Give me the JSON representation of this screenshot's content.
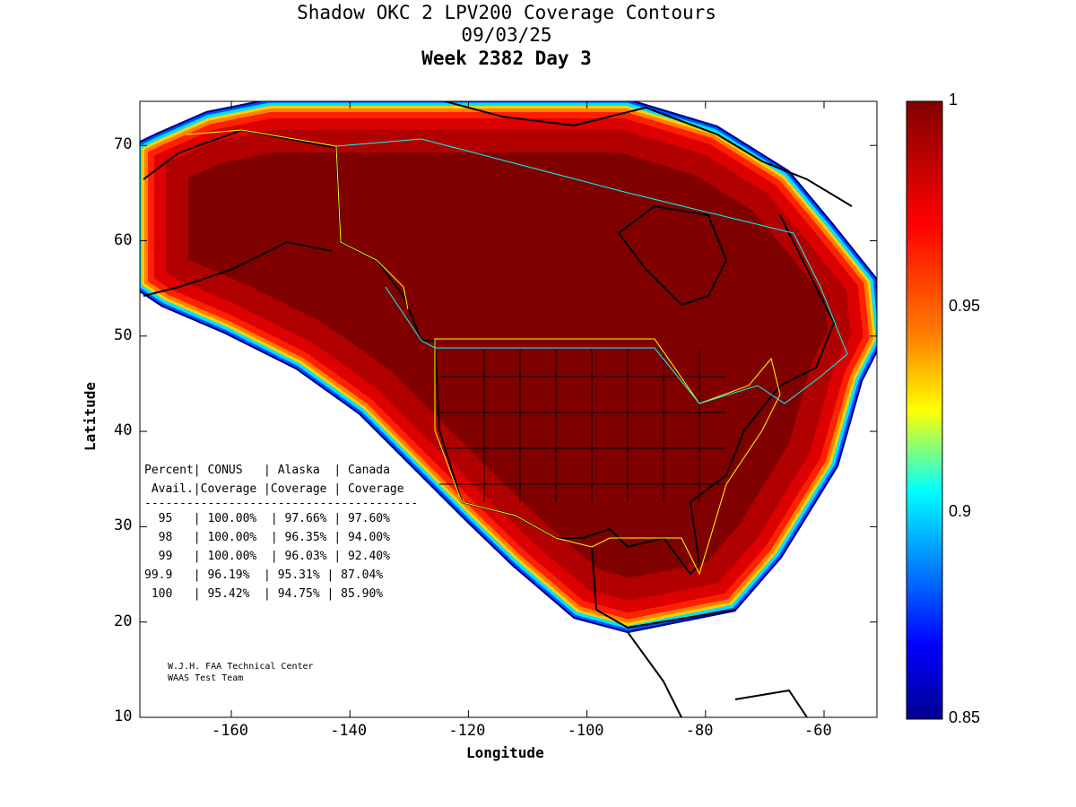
{
  "title": [
    "Shadow OKC 2 LPV200 Coverage Contours",
    "09/03/25",
    "Week 2382 Day 3"
  ],
  "chart_data": {
    "type": "heatmap",
    "title": "Shadow OKC 2 LPV200 Coverage Contours",
    "xlabel": "Longitude",
    "ylabel": "Latitude",
    "xlim": [
      -175,
      -50
    ],
    "ylim": [
      10,
      75
    ],
    "x_ticks": [
      "-160",
      "-140",
      "-120",
      "-100",
      "-80",
      "-60"
    ],
    "x_tick_values": [
      -160,
      -140,
      -120,
      -100,
      -80,
      -60
    ],
    "y_ticks": [
      "10",
      "20",
      "30",
      "40",
      "50",
      "60",
      "70"
    ],
    "y_tick_values": [
      10,
      20,
      30,
      40,
      50,
      60,
      70
    ],
    "colorbar": {
      "range": [
        0.85,
        1
      ],
      "ticks": [
        "1",
        "0.95",
        "0.9",
        "0.85"
      ],
      "tick_values": [
        1,
        0.95,
        0.9,
        0.85
      ],
      "colormap": "jet"
    }
  },
  "table": {
    "header1": "Percent| CONUS   | Alaska  | Canada",
    "header2": " Avail.|Coverage |Coverage | Coverage",
    "divider": "---------------------------------------",
    "rows": [
      "  95   | 100.00%  | 97.66% | 97.60%",
      "  98   | 100.00%  | 96.35% | 94.00%",
      "  99   | 100.00%  | 96.03% | 92.40%",
      "99.9   | 96.19%  | 95.31% | 87.04%",
      " 100   | 95.42%  | 94.75% | 85.90%"
    ]
  },
  "credits": [
    "W.J.H. FAA Technical Center",
    "WAAS Test Team"
  ]
}
